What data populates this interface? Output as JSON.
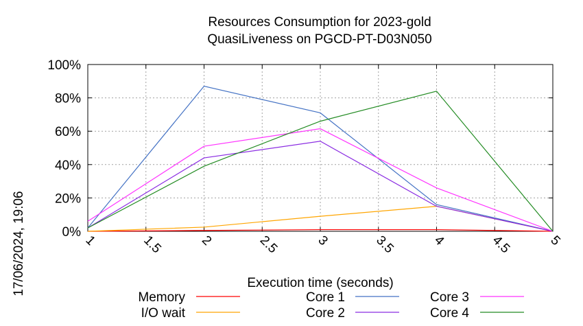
{
  "side_label": "17/06/2024, 19:06",
  "chart_data": {
    "type": "line",
    "title": "Resources Consumption for 2023-gold",
    "subtitle": "QuasiLiveness on PGCD-PT-D03N050",
    "xlabel": "Execution time (seconds)",
    "ylabel": "",
    "xlim": [
      1,
      5
    ],
    "ylim": [
      0,
      100
    ],
    "grid": true,
    "legend_position": "bottom",
    "x_ticks": [
      "1",
      "1.5",
      "2",
      "2.5",
      "3",
      "3.5",
      "4",
      "4.5",
      "5"
    ],
    "y_ticks": [
      "0%",
      "20%",
      "40%",
      "60%",
      "80%",
      "100%"
    ],
    "x": [
      1,
      2,
      3,
      4,
      5
    ],
    "series": [
      {
        "name": "Memory",
        "color": "#ff0000",
        "values": [
          0,
          0.5,
          1,
          1,
          0
        ]
      },
      {
        "name": "I/O wait",
        "color": "#ffa500",
        "values": [
          0,
          2.5,
          9,
          15,
          0
        ]
      },
      {
        "name": "Core 1",
        "color": "#4472c4",
        "values": [
          2,
          87,
          71,
          16,
          0
        ]
      },
      {
        "name": "Core 2",
        "color": "#8a2be2",
        "values": [
          2,
          44,
          54,
          15,
          0
        ]
      },
      {
        "name": "Core 3",
        "color": "#ff33ff",
        "values": [
          6,
          51,
          61.5,
          26,
          0
        ]
      },
      {
        "name": "Core 4",
        "color": "#228b22",
        "values": [
          2,
          39,
          66,
          84,
          0
        ]
      }
    ]
  }
}
